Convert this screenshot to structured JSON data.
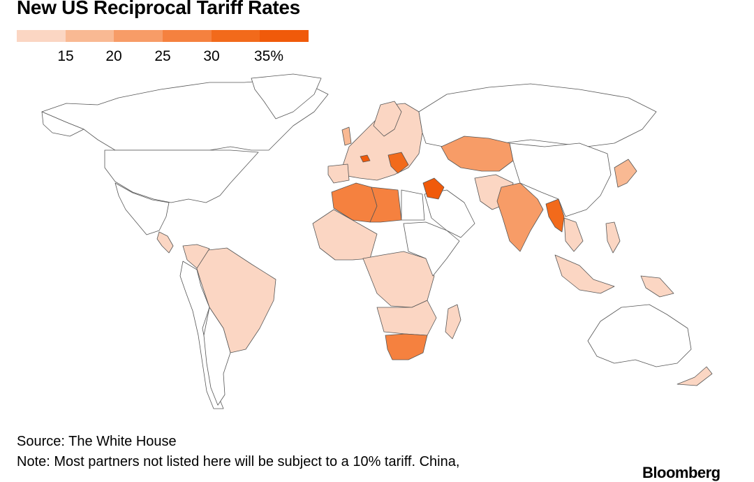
{
  "title": "New US Reciprocal Tariff Rates",
  "legend": {
    "labels": [
      "15",
      "20",
      "25",
      "30",
      "35%"
    ],
    "colors": [
      "#fbd6c3",
      "#f9b993",
      "#f79c67",
      "#f5813f",
      "#f26a1b",
      "#f05a0a"
    ]
  },
  "source": "Source: The White House",
  "note": "Note: Most partners not listed here will be subject to a 10% tariff. China,",
  "logo": "Bloomberg",
  "map_colors": {
    "no_data": "#ffffff",
    "rate_10_15": "#fbd6c3",
    "rate_15_20": "#f9b993",
    "rate_20_25": "#f79c67",
    "rate_25_30": "#f5813f",
    "rate_30_35": "#f26a1b",
    "rate_35_plus": "#f05a0a"
  }
}
